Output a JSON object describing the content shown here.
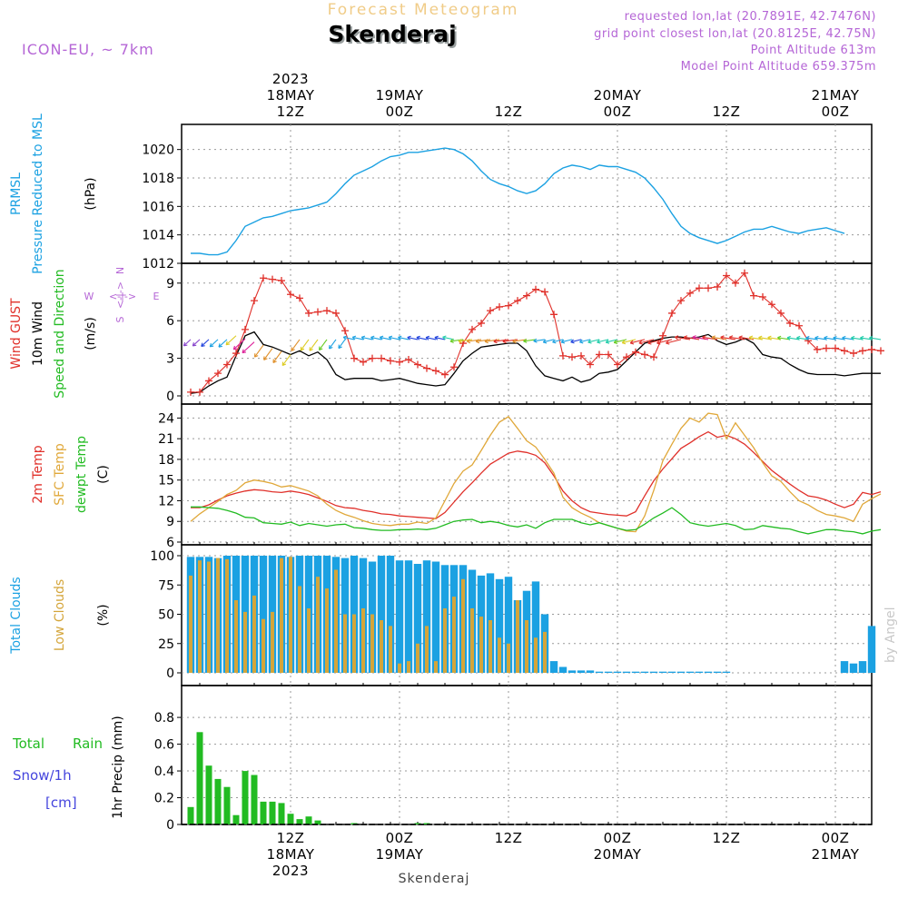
{
  "header": {
    "title": "Forecast Meteogram",
    "location": "Skenderaj",
    "model": "ICON-EU, ~ 7km",
    "requested": "requested lon,lat (20.7891E, 42.7476N)",
    "gridpoint": "grid point closest lon,lat (20.8125E, 42.75N)",
    "point_alt": "Point Altitude 613m",
    "model_alt": "Model Point Altitude 659.375m",
    "footer": "Skenderaj",
    "watermark": "by Angel"
  },
  "time_axis": {
    "hours_span": [
      -12,
      64
    ],
    "ticks": [
      {
        "h": 0,
        "lines": [
          "2023",
          "18MAY",
          "12Z"
        ]
      },
      {
        "h": 12,
        "lines": [
          "19MAY",
          "00Z"
        ]
      },
      {
        "h": 24,
        "lines": [
          "12Z"
        ]
      },
      {
        "h": 36,
        "lines": [
          "20MAY",
          "00Z"
        ]
      },
      {
        "h": 48,
        "lines": [
          "12Z"
        ]
      },
      {
        "h": 60,
        "lines": [
          "21MAY",
          "00Z"
        ]
      }
    ],
    "bottom_ticks": [
      {
        "h": 0,
        "lines": [
          "12Z",
          "18MAY",
          "2023"
        ]
      },
      {
        "h": 12,
        "lines": [
          "00Z",
          "19MAY"
        ]
      },
      {
        "h": 24,
        "lines": [
          "12Z"
        ]
      },
      {
        "h": 36,
        "lines": [
          "00Z",
          "20MAY"
        ]
      },
      {
        "h": 48,
        "lines": [
          "12Z"
        ]
      },
      {
        "h": 60,
        "lines": [
          "00Z",
          "21MAY"
        ]
      }
    ]
  },
  "panel_labels": {
    "p1": [
      {
        "t": "PRMSL",
        "c": "#1ba1e2"
      },
      {
        "t": "Pressure Reduced to MSL",
        "c": "#1ba1e2"
      },
      {
        "t": "(hPa)",
        "c": "#000000"
      }
    ],
    "p2": [
      {
        "t": "Wind GUST",
        "c": "#e0302a"
      },
      {
        "t": "10m Wind",
        "c": "#000000"
      },
      {
        "t": "Speed and Direction",
        "c": "#22bb22"
      },
      {
        "t": "(m/s)",
        "c": "#000000"
      }
    ],
    "p3": [
      {
        "t": "2m Temp",
        "c": "#e0302a"
      },
      {
        "t": "SFC Temp",
        "c": "#e0a83a"
      },
      {
        "t": "dewpt Temp",
        "c": "#22bb22"
      },
      {
        "t": "(C)",
        "c": "#000000"
      }
    ],
    "p4": [
      {
        "t": "Total Clouds",
        "c": "#1ba1e2"
      },
      {
        "t": "Low Clouds",
        "c": "#d4a53a"
      },
      {
        "t": "(%)",
        "c": "#000000"
      }
    ],
    "p5_vertical": "1hr Precip (mm)",
    "p5_legend": [
      {
        "t": "Total Rain",
        "c": "#22bb22"
      },
      {
        "t": "Snow/1h",
        "c": "#4444dd"
      },
      {
        "t": "[cm]",
        "c": "#4444dd"
      }
    ],
    "compass": [
      "N",
      "S",
      "W",
      "E",
      "<-|->"
    ]
  },
  "chart_data": [
    {
      "type": "line",
      "name": "pressure",
      "ylim": [
        1012,
        1021
      ],
      "yticks": [
        1012,
        1014,
        1016,
        1018,
        1020
      ],
      "x_start": -11,
      "x_step": 1,
      "color": "#1ba1e2",
      "values": [
        1012.7,
        1012.7,
        1012.6,
        1012.6,
        1012.8,
        1013.6,
        1014.6,
        1014.9,
        1015.2,
        1015.3,
        1015.5,
        1015.7,
        1015.8,
        1015.9,
        1016.1,
        1016.3,
        1016.9,
        1017.6,
        1018.2,
        1018.5,
        1018.8,
        1019.2,
        1019.5,
        1019.6,
        1019.8,
        1019.8,
        1019.9,
        1020.0,
        1020.1,
        1020.0,
        1019.7,
        1019.2,
        1018.5,
        1017.9,
        1017.6,
        1017.4,
        1017.1,
        1016.9,
        1017.1,
        1017.6,
        1018.3,
        1018.7,
        1018.9,
        1018.8,
        1018.6,
        1018.9,
        1018.8,
        1018.8,
        1018.6,
        1018.4,
        1018.0,
        1017.3,
        1016.5,
        1015.5,
        1014.6,
        1014.1,
        1013.8,
        1013.6,
        1013.4,
        1013.6,
        1013.9,
        1014.2,
        1014.4,
        1014.4,
        1014.6,
        1014.4,
        1014.2,
        1014.1,
        1014.3,
        1014.4,
        1014.5,
        1014.3,
        1014.1
      ]
    },
    {
      "type": "line",
      "name": "wind",
      "ylim": [
        0,
        10
      ],
      "yticks": [
        0,
        3,
        6,
        9
      ],
      "x_start": -11,
      "x_step": 1,
      "series": [
        {
          "name": "Wind GUST",
          "color": "#e0302a",
          "marker": "+",
          "values": [
            0.3,
            0.3,
            1.2,
            1.8,
            2.5,
            3.4,
            5.3,
            7.6,
            9.4,
            9.3,
            9.2,
            8.1,
            7.8,
            6.6,
            6.7,
            6.8,
            6.6,
            5.2,
            3.0,
            2.7,
            3.0,
            3.0,
            2.8,
            2.7,
            2.9,
            2.5,
            2.2,
            2.0,
            1.7,
            2.3,
            4.2,
            5.3,
            5.8,
            6.8,
            7.1,
            7.2,
            7.6,
            8.0,
            8.5,
            8.3,
            6.5,
            3.2,
            3.1,
            3.2,
            2.5,
            3.3,
            3.3,
            2.5,
            3.1,
            3.5,
            3.3,
            3.1,
            4.8,
            6.6,
            7.6,
            8.2,
            8.6,
            8.6,
            8.7,
            9.6,
            9.0,
            9.8,
            8.0,
            7.9,
            7.3,
            6.6,
            5.8,
            5.6,
            4.4,
            3.7,
            3.8,
            3.8,
            3.6,
            3.4,
            3.6,
            3.7,
            3.6
          ]
        },
        {
          "name": "10m Wind",
          "color": "#000000",
          "marker": "",
          "values": [
            0.2,
            0.3,
            0.8,
            1.2,
            1.5,
            3.2,
            4.8,
            5.1,
            4.1,
            3.9,
            3.6,
            3.3,
            3.6,
            3.2,
            3.5,
            2.9,
            1.7,
            1.3,
            1.4,
            1.4,
            1.4,
            1.2,
            1.3,
            1.4,
            1.2,
            1.0,
            0.9,
            0.8,
            0.9,
            1.8,
            2.8,
            3.4,
            3.9,
            4.0,
            4.1,
            4.2,
            4.2,
            3.6,
            2.4,
            1.6,
            1.4,
            1.2,
            1.5,
            1.1,
            1.3,
            1.8,
            1.9,
            2.1,
            2.8,
            3.5,
            4.2,
            4.4,
            4.6,
            4.7,
            4.7,
            4.6,
            4.7,
            4.9,
            4.4,
            4.1,
            4.3,
            4.6,
            4.2,
            3.3,
            3.1,
            3.0,
            2.5,
            2.1,
            1.8,
            1.7,
            1.7,
            1.7,
            1.6,
            1.7,
            1.8,
            1.8,
            1.8
          ]
        }
      ]
    },
    {
      "type": "line",
      "name": "temperature",
      "ylim": [
        6,
        25.5
      ],
      "yticks": [
        6,
        9,
        12,
        15,
        18,
        21,
        24
      ],
      "x_start": -11,
      "x_step": 1,
      "series": [
        {
          "name": "2m Temp",
          "color": "#e0302a",
          "values": [
            11.0,
            11.0,
            11.4,
            12.1,
            12.7,
            13.1,
            13.4,
            13.6,
            13.5,
            13.3,
            13.2,
            13.4,
            13.2,
            12.9,
            12.4,
            11.9,
            11.3,
            11.0,
            10.9,
            10.6,
            10.4,
            10.1,
            10.0,
            9.8,
            9.7,
            9.6,
            9.5,
            9.4,
            10.3,
            11.8,
            13.3,
            14.6,
            16.0,
            17.3,
            18.1,
            18.9,
            19.2,
            19.0,
            18.6,
            17.5,
            15.6,
            13.4,
            12.0,
            11.0,
            10.4,
            10.2,
            10.0,
            9.9,
            9.8,
            10.4,
            12.7,
            14.9,
            16.6,
            18.1,
            19.6,
            20.4,
            21.3,
            22.0,
            21.2,
            21.5,
            21.0,
            20.2,
            19.0,
            17.7,
            16.4,
            15.4,
            14.4,
            13.5,
            12.7,
            12.5,
            12.1,
            11.5,
            11.0,
            11.5,
            13.2,
            12.9,
            13.3
          ]
        },
        {
          "name": "SFC Temp",
          "color": "#e0a83a",
          "values": [
            9.0,
            10.1,
            11.0,
            11.9,
            12.9,
            13.5,
            14.6,
            15.0,
            14.8,
            14.5,
            14.0,
            14.2,
            13.8,
            13.4,
            12.7,
            11.5,
            10.6,
            10.0,
            9.6,
            9.1,
            8.7,
            8.5,
            8.4,
            8.6,
            8.6,
            8.9,
            8.7,
            9.5,
            12.0,
            14.5,
            16.3,
            17.2,
            19.3,
            21.5,
            23.4,
            24.2,
            22.5,
            20.7,
            19.8,
            18.0,
            16.0,
            12.5,
            11.0,
            10.2,
            9.6,
            8.8,
            8.4,
            8.0,
            7.6,
            7.5,
            9.8,
            13.5,
            17.8,
            20.2,
            22.5,
            24.0,
            23.4,
            24.7,
            24.5,
            21.0,
            23.3,
            21.5,
            19.7,
            17.5,
            15.6,
            14.8,
            13.3,
            12.0,
            11.4,
            10.6,
            10.0,
            9.8,
            9.5,
            9.0,
            11.5,
            12.3,
            13.0
          ]
        },
        {
          "name": "dewpt Temp",
          "color": "#22bb22",
          "values": [
            11.1,
            11.1,
            11.0,
            10.9,
            10.6,
            10.2,
            9.6,
            9.5,
            8.8,
            8.7,
            8.6,
            8.9,
            8.4,
            8.7,
            8.5,
            8.3,
            8.5,
            8.6,
            8.1,
            8.0,
            7.8,
            7.7,
            7.7,
            7.8,
            7.8,
            7.9,
            7.8,
            8.0,
            8.5,
            9.0,
            9.2,
            9.3,
            8.8,
            9.0,
            8.8,
            8.4,
            8.2,
            8.5,
            8.0,
            8.8,
            9.3,
            9.3,
            9.3,
            8.8,
            8.5,
            8.8,
            8.4,
            8.0,
            7.7,
            7.8,
            8.6,
            9.5,
            10.2,
            11.0,
            10.0,
            8.8,
            8.5,
            8.3,
            8.5,
            8.7,
            8.4,
            7.8,
            7.9,
            8.4,
            8.2,
            8.0,
            7.9,
            7.5,
            7.2,
            7.5,
            7.8,
            7.8,
            7.6,
            7.5,
            7.2,
            7.6,
            7.8
          ]
        }
      ]
    },
    {
      "type": "bar",
      "name": "clouds",
      "ylim": [
        0,
        100
      ],
      "yticks": [
        0,
        25,
        50,
        75,
        100
      ],
      "x_start": -11,
      "x_step": 1,
      "series": [
        {
          "name": "Total Clouds",
          "color": "#1ba1e2",
          "values": [
            99,
            99,
            99,
            98,
            100,
            100,
            100,
            100,
            100,
            100,
            100,
            99,
            100,
            100,
            100,
            100,
            99,
            98,
            100,
            98,
            95,
            100,
            100,
            96,
            96,
            93,
            96,
            95,
            92,
            92,
            92,
            88,
            83,
            85,
            80,
            82,
            62,
            70,
            78,
            50,
            10,
            5,
            2,
            2,
            2,
            1,
            1,
            1,
            1,
            1,
            1,
            1,
            1,
            1,
            1,
            1,
            1,
            1,
            1,
            1,
            0,
            0,
            0,
            0,
            0,
            0,
            0,
            0,
            0,
            0,
            0,
            0,
            10,
            8,
            10,
            40,
            0
          ]
        },
        {
          "name": "Low Clouds",
          "color": "#d4a53a",
          "values": [
            83,
            96,
            95,
            98,
            97,
            62,
            52,
            66,
            46,
            52,
            98,
            99,
            74,
            55,
            82,
            72,
            88,
            50,
            50,
            55,
            50,
            45,
            40,
            8,
            10,
            25,
            40,
            10,
            55,
            65,
            80,
            55,
            48,
            45,
            30,
            25,
            62,
            45,
            30,
            35,
            0,
            0,
            0,
            0,
            0,
            0,
            0,
            0,
            0,
            0,
            0,
            0,
            0,
            0,
            0,
            0,
            0,
            0,
            0,
            0,
            0,
            0,
            0,
            0,
            0,
            0,
            0,
            0,
            0,
            0,
            0,
            0,
            0,
            0,
            0,
            0,
            0
          ]
        }
      ]
    },
    {
      "type": "bar",
      "name": "precip",
      "ylim": [
        0,
        0.95
      ],
      "yticks": [
        0,
        0.2,
        0.4,
        0.6,
        0.8
      ],
      "x_start": -11,
      "x_step": 1,
      "series": [
        {
          "name": "Total Rain",
          "color": "#22bb22",
          "values": [
            0.13,
            0.69,
            0.44,
            0.34,
            0.28,
            0.07,
            0.4,
            0.37,
            0.17,
            0.17,
            0.16,
            0.08,
            0.04,
            0.06,
            0.03,
            0.0,
            0.0,
            0.0,
            0.01,
            0.0,
            0.0,
            0.0,
            0.0,
            0.0,
            0.0,
            0.01,
            0.01,
            0.0,
            0.0,
            0.0,
            0.0,
            0.0,
            0.0,
            0.0,
            0.0,
            0.0,
            0.0,
            0.0,
            0.0,
            0.0,
            0.0,
            0.0,
            0.0,
            0.0,
            0.0,
            0.0,
            0.0,
            0.0,
            0.0,
            0.0,
            0.0,
            0.0,
            0.0,
            0.0,
            0.0,
            0.0,
            0.0,
            0.0,
            0.0,
            0.0,
            0.0,
            0.0,
            0.0,
            0.0,
            0.0,
            0.0,
            0.0,
            0.0,
            0.0,
            0.0,
            0.0,
            0.0,
            0.0,
            0.0,
            0.0,
            0.0,
            0.0
          ]
        }
      ]
    }
  ]
}
